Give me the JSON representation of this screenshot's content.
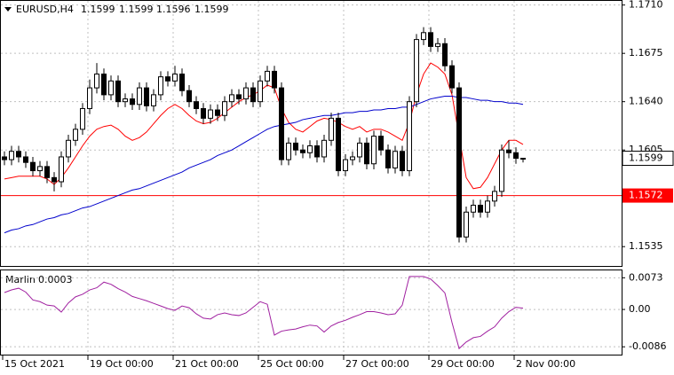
{
  "chart_data": {
    "type": "candlestick",
    "symbol": "EURUSD,H4",
    "open": [
      1.16,
      1.1598,
      1.1604,
      1.16,
      1.1596,
      1.159,
      1.1593,
      1.1585,
      1.1582,
      1.16,
      1.1612,
      1.162,
      1.1635,
      1.165,
      1.166,
      1.1645,
      1.1655,
      1.164,
      1.1642,
      1.1638,
      1.165,
      1.1637,
      1.1645,
      1.1658,
      1.1655,
      1.166,
      1.1648,
      1.164,
      1.1635,
      1.1628,
      1.1634,
      1.163,
      1.164,
      1.1645,
      1.1642,
      1.165,
      1.164,
      1.1655,
      1.1662,
      1.165,
      1.1598,
      1.161,
      1.1605,
      1.1603,
      1.1608,
      1.16,
      1.1612,
      1.1628,
      1.159,
      1.1598,
      1.16,
      1.161,
      1.1595,
      1.1615,
      1.1605,
      1.1592,
      1.1604,
      1.159,
      1.164,
      1.1685,
      1.169,
      1.168,
      1.1682,
      1.1666,
      1.165,
      1.1542,
      1.156,
      1.1565,
      1.156,
      1.1568,
      1.1575,
      1.1605,
      1.1603,
      1.1599
    ],
    "high": [
      1.1604,
      1.1608,
      1.1608,
      1.1604,
      1.16,
      1.1597,
      1.1597,
      1.1589,
      1.1604,
      1.1616,
      1.1624,
      1.1639,
      1.1656,
      1.1668,
      1.1664,
      1.1659,
      1.1659,
      1.1646,
      1.1646,
      1.1654,
      1.1654,
      1.1649,
      1.1662,
      1.1662,
      1.1666,
      1.1664,
      1.1652,
      1.1644,
      1.1639,
      1.1638,
      1.1638,
      1.1644,
      1.1649,
      1.1649,
      1.1654,
      1.1654,
      1.1659,
      1.1666,
      1.1666,
      1.1654,
      1.1614,
      1.1614,
      1.1609,
      1.1612,
      1.1612,
      1.1616,
      1.1632,
      1.1632,
      1.1602,
      1.1604,
      1.1614,
      1.1614,
      1.1619,
      1.1619,
      1.1609,
      1.1608,
      1.1608,
      1.1644,
      1.1689,
      1.1694,
      1.1694,
      1.1686,
      1.1686,
      1.167,
      1.1654,
      1.1564,
      1.1569,
      1.1569,
      1.1572,
      1.1579,
      1.1609,
      1.1612,
      1.1607,
      1.1599
    ],
    "low": [
      1.1594,
      1.1594,
      1.1596,
      1.1592,
      1.1586,
      1.1586,
      1.1581,
      1.1575,
      1.1578,
      1.1596,
      1.1608,
      1.1616,
      1.1631,
      1.1646,
      1.1641,
      1.1641,
      1.1636,
      1.1636,
      1.1634,
      1.1634,
      1.1633,
      1.1633,
      1.1641,
      1.1651,
      1.1651,
      1.1644,
      1.1636,
      1.1631,
      1.1624,
      1.1624,
      1.1626,
      1.1626,
      1.1636,
      1.1638,
      1.1638,
      1.1636,
      1.1636,
      1.1651,
      1.1646,
      1.1594,
      1.1594,
      1.1601,
      1.1599,
      1.1599,
      1.1596,
      1.1596,
      1.1608,
      1.1586,
      1.1586,
      1.1594,
      1.1596,
      1.1591,
      1.1591,
      1.1601,
      1.1588,
      1.1588,
      1.1586,
      1.1586,
      1.1636,
      1.1681,
      1.1676,
      1.1676,
      1.1662,
      1.1646,
      1.1538,
      1.1538,
      1.1556,
      1.1556,
      1.1556,
      1.1564,
      1.1571,
      1.1599,
      1.1595,
      1.1596
    ],
    "close": [
      1.1598,
      1.1604,
      1.16,
      1.1596,
      1.159,
      1.1593,
      1.1585,
      1.1582,
      1.16,
      1.1612,
      1.162,
      1.1635,
      1.165,
      1.166,
      1.1645,
      1.1655,
      1.164,
      1.1642,
      1.1638,
      1.165,
      1.1637,
      1.1645,
      1.1658,
      1.1655,
      1.166,
      1.1648,
      1.164,
      1.1635,
      1.1628,
      1.1634,
      1.163,
      1.164,
      1.1645,
      1.1642,
      1.165,
      1.164,
      1.1655,
      1.1662,
      1.165,
      1.1598,
      1.161,
      1.1605,
      1.1603,
      1.1608,
      1.16,
      1.1612,
      1.1628,
      1.159,
      1.1598,
      1.16,
      1.161,
      1.1595,
      1.1615,
      1.1605,
      1.1592,
      1.1604,
      1.159,
      1.164,
      1.1685,
      1.169,
      1.168,
      1.1682,
      1.1666,
      1.165,
      1.1542,
      1.156,
      1.1565,
      1.156,
      1.1568,
      1.1575,
      1.1605,
      1.1603,
      1.1599,
      1.1599
    ],
    "bull_color": "#ffffff",
    "bear_color": "#000000",
    "series": [
      {
        "color": "#ff0000",
        "values": [
          1.1584,
          1.1585,
          1.1586,
          1.1586,
          1.1586,
          1.1586,
          1.1584,
          1.158,
          1.1585,
          1.1592,
          1.16,
          1.1608,
          1.1615,
          1.162,
          1.1622,
          1.1623,
          1.162,
          1.1615,
          1.1612,
          1.1614,
          1.1618,
          1.1624,
          1.163,
          1.1635,
          1.1638,
          1.1635,
          1.163,
          1.1626,
          1.1624,
          1.1625,
          1.1628,
          1.1632,
          1.1636,
          1.164,
          1.1643,
          1.1645,
          1.1648,
          1.1652,
          1.165,
          1.1635,
          1.1625,
          1.162,
          1.1618,
          1.1622,
          1.1626,
          1.1628,
          1.1627,
          1.1625,
          1.1622,
          1.162,
          1.1622,
          1.1618,
          1.162,
          1.162,
          1.1618,
          1.1615,
          1.1612,
          1.1625,
          1.1645,
          1.166,
          1.1668,
          1.1665,
          1.166,
          1.1645,
          1.1615,
          1.1585,
          1.1577,
          1.1578,
          1.1585,
          1.1595,
          1.1605,
          1.1612,
          1.1612,
          1.1609
        ]
      },
      {
        "color": "#0000cc",
        "values": [
          1.1545,
          1.1547,
          1.1548,
          1.155,
          1.1551,
          1.1553,
          1.1555,
          1.1556,
          1.1558,
          1.1559,
          1.1561,
          1.1563,
          1.1564,
          1.1566,
          1.1568,
          1.157,
          1.1572,
          1.1574,
          1.1576,
          1.1577,
          1.1579,
          1.1581,
          1.1583,
          1.1585,
          1.1587,
          1.1589,
          1.1592,
          1.1594,
          1.1596,
          1.1598,
          1.1601,
          1.1603,
          1.1605,
          1.1608,
          1.1611,
          1.1614,
          1.1617,
          1.162,
          1.1622,
          1.1623,
          1.1624,
          1.1625,
          1.1627,
          1.1628,
          1.1629,
          1.163,
          1.163,
          1.1631,
          1.1632,
          1.1632,
          1.1633,
          1.1633,
          1.1634,
          1.1634,
          1.1635,
          1.1635,
          1.1636,
          1.1636,
          1.1638,
          1.164,
          1.1642,
          1.1643,
          1.1644,
          1.1644,
          1.1643,
          1.1643,
          1.1642,
          1.1641,
          1.1641,
          1.164,
          1.164,
          1.1639,
          1.1639,
          1.1638
        ]
      }
    ],
    "hline": {
      "value": 1.1572,
      "color": "#ff0000"
    },
    "ylim": [
      1.1521,
      1.1713
    ],
    "yticks": [
      {
        "value": 1.171,
        "label": "1.1710"
      },
      1.1675,
      {
        "value": 1.164,
        "label": "1.1640"
      },
      1.1605,
      1.1535
    ],
    "grid": true,
    "xticks": [
      {
        "value": 0,
        "label": "15 Oct 2021"
      },
      {
        "value": 12,
        "label": "19 Oct 00:00"
      },
      {
        "value": 24,
        "label": "21 Oct 00:00"
      },
      {
        "value": 36,
        "label": "25 Oct 00:00"
      },
      {
        "value": 48,
        "label": "27 Oct 00:00"
      },
      {
        "value": 60,
        "label": "29 Oct 00:00"
      },
      {
        "value": 72,
        "label": "2 Nov 00:00"
      }
    ],
    "indicator": {
      "type": "line",
      "name": "Marlin",
      "color": "#a020a0",
      "values": [
        0.0039,
        0.0045,
        0.0049,
        0.004,
        0.0022,
        0.0018,
        0.001,
        0.0008,
        -0.0006,
        0.0015,
        0.0029,
        0.0035,
        0.0045,
        0.005,
        0.0063,
        0.0058,
        0.0048,
        0.004,
        0.003,
        0.0025,
        0.002,
        0.0014,
        0.0008,
        0.0002,
        -0.0002,
        0.0008,
        0.0004,
        -0.001,
        -0.002,
        -0.0022,
        -0.0012,
        -0.0008,
        -0.0012,
        -0.0014,
        -0.0008,
        0.0005,
        0.0018,
        0.0012,
        -0.0059,
        -0.005,
        -0.0047,
        -0.0045,
        -0.004,
        -0.0036,
        -0.0038,
        -0.0052,
        -0.0038,
        -0.003,
        -0.0025,
        -0.0018,
        -0.0012,
        -0.0005,
        -0.0005,
        -0.0008,
        -0.0012,
        -0.001,
        0.001,
        0.0076,
        0.0076,
        0.0076,
        0.007,
        0.0055,
        0.0038,
        -0.003,
        -0.009,
        -0.0075,
        -0.0065,
        -0.0062,
        -0.005,
        -0.004,
        -0.002,
        -0.0005,
        0.0005,
        0.0003
      ],
      "ylim": [
        -0.0104,
        0.009
      ],
      "yticks": [
        0.0073,
        {
          "value": 0,
          "label": "0.00"
        },
        -0.0086
      ]
    }
  }
}
